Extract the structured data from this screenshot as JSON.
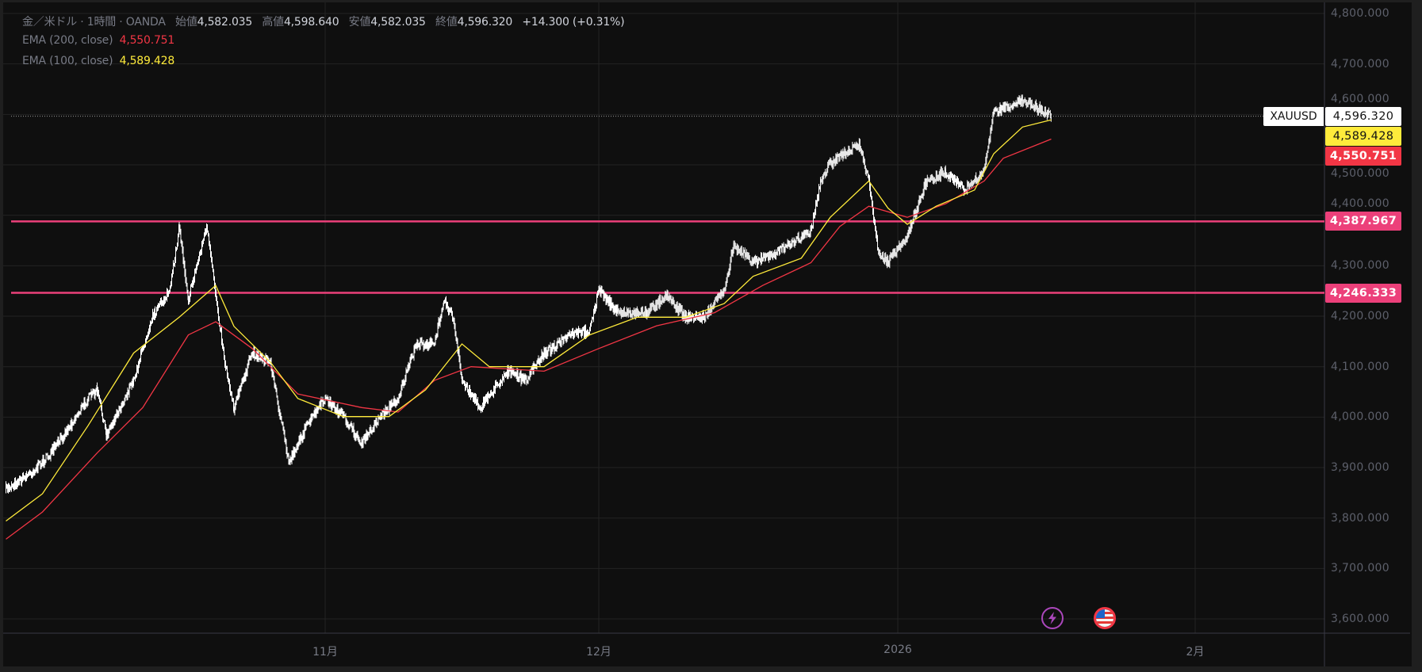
{
  "legend": {
    "symbol_desc": "金／米ドル · 1時間 · OANDA",
    "open_label": "始値",
    "open": "4,582.035",
    "high_label": "高値",
    "high": "4,598.640",
    "low_label": "安値",
    "low": "4,582.035",
    "close_label": "終値",
    "close": "4,596.320",
    "change": "+14.300 (+0.31%)",
    "ema200_label": "EMA (200, close)",
    "ema200_value": "4,550.751",
    "ema100_label": "EMA (100, close)",
    "ema100_value": "4,589.428"
  },
  "price_axis": {
    "ticks": [
      "4,800.000",
      "4,700.000",
      "4,600.000",
      "4,500.000",
      "4,400.000",
      "4,300.000",
      "4,200.000",
      "4,100.000",
      "4,000.000",
      "3,900.000",
      "3,800.000",
      "3,700.000",
      "3,600.000"
    ],
    "symbol_tag": "XAUUSD",
    "last_price_tag": "4,596.320",
    "ema100_tag": "4,589.428",
    "ema200_tag": "4,550.751",
    "hline1_tag": "4,387.967",
    "hline2_tag": "4,246.333"
  },
  "time_axis": {
    "ticks": [
      {
        "label": "11月",
        "date": "2025-11-01"
      },
      {
        "label": "12月",
        "date": "2025-12-01"
      },
      {
        "label": "2026",
        "date": "2026-01-01"
      },
      {
        "label": "2月",
        "date": "2026-02-01"
      }
    ]
  },
  "events": [
    {
      "icon": "lightning-icon",
      "color": "#ab47bc"
    },
    {
      "icon": "us-flag-icon",
      "color": "#f23645"
    }
  ],
  "colors": {
    "background": "#0f0f0f",
    "candles": "#ffffff",
    "ema100": "#ffeb3b",
    "ema200": "#f23645",
    "hline": "#ec407a",
    "grid": "#232323"
  },
  "chart_data": {
    "type": "line",
    "symbol": "XAUUSD",
    "ylim": [
      3600,
      4800
    ],
    "horizontal_lines": [
      4387.967,
      4246.333
    ],
    "last_price": 4596.32,
    "series": [
      {
        "key": "price",
        "points": [
          [
            "2025-09-27",
            3857
          ],
          [
            "2025-09-30",
            3893
          ],
          [
            "2025-10-02",
            3929
          ],
          [
            "2025-10-04",
            3983
          ],
          [
            "2025-10-06",
            4037
          ],
          [
            "2025-10-07",
            4054
          ],
          [
            "2025-10-08",
            3965
          ],
          [
            "2025-10-11",
            4073
          ],
          [
            "2025-10-13",
            4198
          ],
          [
            "2025-10-15",
            4252
          ],
          [
            "2025-10-16",
            4378
          ],
          [
            "2025-10-17",
            4234
          ],
          [
            "2025-10-19",
            4378
          ],
          [
            "2025-10-21",
            4109
          ],
          [
            "2025-10-22",
            4019
          ],
          [
            "2025-10-24",
            4127
          ],
          [
            "2025-10-26",
            4109
          ],
          [
            "2025-10-28",
            3911
          ],
          [
            "2025-10-30",
            3983
          ],
          [
            "2025-11-01",
            4037
          ],
          [
            "2025-11-03",
            4001
          ],
          [
            "2025-11-05",
            3947
          ],
          [
            "2025-11-07",
            4001
          ],
          [
            "2025-11-09",
            4037
          ],
          [
            "2025-11-11",
            4145
          ],
          [
            "2025-11-13",
            4145
          ],
          [
            "2025-11-14",
            4234
          ],
          [
            "2025-11-15",
            4198
          ],
          [
            "2025-11-16",
            4073
          ],
          [
            "2025-11-18",
            4019
          ],
          [
            "2025-11-21",
            4091
          ],
          [
            "2025-11-23",
            4073
          ],
          [
            "2025-11-25",
            4127
          ],
          [
            "2025-11-28",
            4163
          ],
          [
            "2025-11-30",
            4172
          ],
          [
            "2025-12-01",
            4252
          ],
          [
            "2025-12-03",
            4207
          ],
          [
            "2025-12-06",
            4207
          ],
          [
            "2025-12-08",
            4243
          ],
          [
            "2025-12-10",
            4198
          ],
          [
            "2025-12-12",
            4198
          ],
          [
            "2025-12-14",
            4252
          ],
          [
            "2025-12-15",
            4342
          ],
          [
            "2025-12-17",
            4306
          ],
          [
            "2025-12-20",
            4333
          ],
          [
            "2025-12-23",
            4369
          ],
          [
            "2025-12-24",
            4468
          ],
          [
            "2025-12-25",
            4504
          ],
          [
            "2025-12-28",
            4540
          ],
          [
            "2025-12-29",
            4468
          ],
          [
            "2025-12-30",
            4324
          ],
          [
            "2025-12-31",
            4306
          ],
          [
            "2026-01-02",
            4360
          ],
          [
            "2026-01-04",
            4468
          ],
          [
            "2026-01-06",
            4486
          ],
          [
            "2026-01-08",
            4450
          ],
          [
            "2026-01-10",
            4486
          ],
          [
            "2026-01-11",
            4602
          ],
          [
            "2026-01-12",
            4611
          ],
          [
            "2026-01-14",
            4629
          ],
          [
            "2026-01-15",
            4620
          ],
          [
            "2026-01-17",
            4596
          ]
        ]
      },
      {
        "key": "ema100",
        "name": "EMA (100, close)",
        "points": [
          [
            "2025-09-27",
            3794
          ],
          [
            "2025-10-01",
            3848
          ],
          [
            "2025-10-06",
            3983
          ],
          [
            "2025-10-11",
            4127
          ],
          [
            "2025-10-16",
            4198
          ],
          [
            "2025-10-20",
            4261
          ],
          [
            "2025-10-22",
            4180
          ],
          [
            "2025-10-26",
            4109
          ],
          [
            "2025-10-29",
            4037
          ],
          [
            "2025-11-03",
            4001
          ],
          [
            "2025-11-08",
            4001
          ],
          [
            "2025-11-12",
            4054
          ],
          [
            "2025-11-16",
            4145
          ],
          [
            "2025-11-19",
            4100
          ],
          [
            "2025-11-25",
            4100
          ],
          [
            "2025-11-30",
            4163
          ],
          [
            "2025-12-05",
            4198
          ],
          [
            "2025-12-10",
            4198
          ],
          [
            "2025-12-14",
            4225
          ],
          [
            "2025-12-17",
            4279
          ],
          [
            "2025-12-22",
            4315
          ],
          [
            "2025-12-25",
            4396
          ],
          [
            "2025-12-29",
            4468
          ],
          [
            "2025-12-31",
            4414
          ],
          [
            "2026-01-02",
            4382
          ],
          [
            "2026-01-05",
            4418
          ],
          [
            "2026-01-09",
            4450
          ],
          [
            "2026-01-11",
            4522
          ],
          [
            "2026-01-14",
            4575
          ],
          [
            "2026-01-17",
            4589
          ]
        ]
      },
      {
        "key": "ema200",
        "name": "EMA (200, close)",
        "points": [
          [
            "2025-09-27",
            3758
          ],
          [
            "2025-10-01",
            3812
          ],
          [
            "2025-10-07",
            3929
          ],
          [
            "2025-10-12",
            4019
          ],
          [
            "2025-10-17",
            4163
          ],
          [
            "2025-10-20",
            4189
          ],
          [
            "2025-10-24",
            4136
          ],
          [
            "2025-10-29",
            4046
          ],
          [
            "2025-11-05",
            4019
          ],
          [
            "2025-11-09",
            4010
          ],
          [
            "2025-11-13",
            4073
          ],
          [
            "2025-11-17",
            4100
          ],
          [
            "2025-11-25",
            4091
          ],
          [
            "2025-12-01",
            4136
          ],
          [
            "2025-12-07",
            4181
          ],
          [
            "2025-12-13",
            4207
          ],
          [
            "2025-12-18",
            4261
          ],
          [
            "2025-12-23",
            4306
          ],
          [
            "2025-12-26",
            4378
          ],
          [
            "2025-12-29",
            4418
          ],
          [
            "2026-01-02",
            4396
          ],
          [
            "2026-01-06",
            4423
          ],
          [
            "2026-01-10",
            4468
          ],
          [
            "2026-01-12",
            4513
          ],
          [
            "2026-01-17",
            4551
          ]
        ]
      }
    ]
  }
}
